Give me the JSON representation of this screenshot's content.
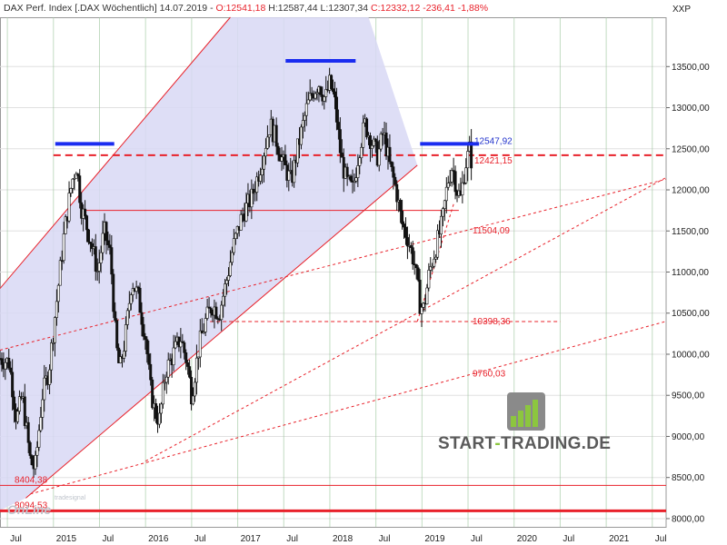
{
  "header": {
    "instrument": "DAX Perf. Index [.DAX  Wöchentlich]",
    "date": "14.07.2019",
    "open": "O:12541,18",
    "high": "H:12587,44",
    "low": "L:12307,34",
    "close": "C:12332,12",
    "change": "-236,41",
    "change_pct": "-1,88%",
    "colors": {
      "text": "#333333",
      "negative": "#e8212a"
    }
  },
  "brand": {
    "logo_left": "START",
    "logo_dash": "-",
    "logo_right": "TRADING.DE",
    "corner_logo": "OnLine",
    "corner_sub": "tradesignal"
  },
  "chart_data": {
    "type": "candlestick",
    "symbol_label": "XXP",
    "ylim": [
      7900,
      14100
    ],
    "y_ticks": [
      "8000,00",
      "8500,00",
      "9000,00",
      "9500,00",
      "10000,00",
      "10500,00",
      "11000,00",
      "11500,00",
      "12000,00",
      "12500,00",
      "13000,00",
      "13500,00"
    ],
    "y_tick_values": [
      8000,
      8500,
      9000,
      9500,
      10000,
      10500,
      11000,
      11500,
      12000,
      12500,
      13000,
      13500
    ],
    "x_ticks": [
      {
        "label": "Jul",
        "t": 2014.5
      },
      {
        "label": "2015",
        "t": 2015.0
      },
      {
        "label": "Jul",
        "t": 2015.5
      },
      {
        "label": "2016",
        "t": 2016.0
      },
      {
        "label": "Jul",
        "t": 2016.5
      },
      {
        "label": "2017",
        "t": 2017.0
      },
      {
        "label": "Jul",
        "t": 2017.5
      },
      {
        "label": "2018",
        "t": 2018.0
      },
      {
        "label": "Jul",
        "t": 2018.5
      },
      {
        "label": "2019",
        "t": 2019.0
      },
      {
        "label": "Jul",
        "t": 2019.5
      },
      {
        "label": "2020",
        "t": 2020.0
      },
      {
        "label": "Jul",
        "t": 2020.5
      },
      {
        "label": "2021",
        "t": 2021.0
      },
      {
        "label": "Jul",
        "t": 2021.5
      }
    ],
    "xlim": [
      2014.42,
      2021.65
    ],
    "price_path": [
      [
        2014.42,
        9950
      ],
      [
        2014.52,
        9900
      ],
      [
        2014.6,
        9200
      ],
      [
        2014.66,
        9500
      ],
      [
        2014.75,
        8700
      ],
      [
        2014.8,
        8600
      ],
      [
        2014.88,
        9500
      ],
      [
        2014.95,
        9800
      ],
      [
        2015.05,
        10800
      ],
      [
        2015.12,
        11500
      ],
      [
        2015.2,
        12100
      ],
      [
        2015.25,
        12300
      ],
      [
        2015.3,
        11800
      ],
      [
        2015.4,
        11400
      ],
      [
        2015.48,
        11000
      ],
      [
        2015.55,
        11500
      ],
      [
        2015.62,
        11200
      ],
      [
        2015.68,
        10100
      ],
      [
        2015.72,
        9800
      ],
      [
        2015.78,
        10200
      ],
      [
        2015.85,
        10900
      ],
      [
        2015.92,
        10700
      ],
      [
        2016.0,
        10200
      ],
      [
        2016.05,
        9600
      ],
      [
        2016.1,
        9300
      ],
      [
        2016.15,
        9200
      ],
      [
        2016.22,
        9800
      ],
      [
        2016.3,
        10000
      ],
      [
        2016.38,
        10200
      ],
      [
        2016.45,
        9900
      ],
      [
        2016.5,
        9500
      ],
      [
        2016.58,
        10100
      ],
      [
        2016.65,
        10400
      ],
      [
        2016.72,
        10600
      ],
      [
        2016.8,
        10500
      ],
      [
        2016.88,
        10900
      ],
      [
        2016.95,
        11300
      ],
      [
        2017.05,
        11700
      ],
      [
        2017.15,
        11900
      ],
      [
        2017.25,
        12300
      ],
      [
        2017.35,
        12800
      ],
      [
        2017.42,
        12600
      ],
      [
        2017.5,
        12300
      ],
      [
        2017.58,
        12100
      ],
      [
        2017.65,
        12500
      ],
      [
        2017.75,
        13000
      ],
      [
        2017.82,
        13200
      ],
      [
        2017.88,
        13300
      ],
      [
        2017.95,
        13100
      ],
      [
        2018.0,
        13300
      ],
      [
        2018.05,
        13100
      ],
      [
        2018.12,
        12400
      ],
      [
        2018.18,
        12100
      ],
      [
        2018.25,
        12000
      ],
      [
        2018.32,
        12500
      ],
      [
        2018.38,
        12800
      ],
      [
        2018.45,
        12600
      ],
      [
        2018.52,
        12400
      ],
      [
        2018.58,
        12700
      ],
      [
        2018.65,
        12300
      ],
      [
        2018.72,
        12000
      ],
      [
        2018.78,
        11600
      ],
      [
        2018.85,
        11400
      ],
      [
        2018.92,
        11100
      ],
      [
        2018.98,
        10600
      ],
      [
        2019.02,
        10550
      ],
      [
        2019.08,
        11000
      ],
      [
        2019.15,
        11300
      ],
      [
        2019.22,
        11600
      ],
      [
        2019.28,
        12100
      ],
      [
        2019.33,
        12300
      ],
      [
        2019.38,
        12000
      ],
      [
        2019.42,
        11900
      ],
      [
        2019.47,
        12300
      ],
      [
        2019.52,
        12500
      ],
      [
        2019.54,
        12330
      ]
    ],
    "annotations": [
      {
        "label": "12547,92",
        "y": 12547.92,
        "color": "#2233cc"
      },
      {
        "label": "12421,15",
        "y": 12421.15,
        "color": "#e8212a"
      },
      {
        "label": "11504,09",
        "y": 11504.09,
        "color": "#e8212a"
      },
      {
        "label": "10398,36",
        "y": 10398.36,
        "color": "#e8212a"
      },
      {
        "label": "9760,03",
        "y": 9760.03,
        "color": "#e8212a"
      },
      {
        "label": "8404,38",
        "y": 8404.38,
        "color": "#e8212a"
      },
      {
        "label": "8094,53",
        "y": 8094.53,
        "color": "#e8212a"
      }
    ],
    "horizontal_lines": [
      {
        "y": 12421.15,
        "style": "dashed-thick",
        "from": 2015.0,
        "to": 2021.65
      },
      {
        "y": 11750,
        "style": "solid-thin",
        "from": 2015.35,
        "to": 2019.4
      },
      {
        "y": 10398.36,
        "style": "dashed-thin",
        "from": 2016.7,
        "to": 2020.5
      },
      {
        "y": 8404.38,
        "style": "solid-thin",
        "from": 2014.42,
        "to": 2021.65
      },
      {
        "y": 8094.53,
        "style": "solid-thick",
        "from": 2014.42,
        "to": 2021.65
      }
    ],
    "resistance_marks": [
      {
        "y": 12560,
        "from": 2015.02,
        "to": 2015.66
      },
      {
        "y": 13570,
        "from": 2017.52,
        "to": 2018.28
      },
      {
        "y": 12560,
        "from": 2018.98,
        "to": 2019.62
      }
    ],
    "channel": {
      "upper": [
        [
          2014.42,
          10800
        ],
        [
          2016.92,
          14100
        ]
      ],
      "lower": [
        [
          2014.7,
          8250
        ],
        [
          2018.95,
          12300
        ]
      ],
      "fill_until": 2018.95,
      "fill_color": "#d8d8f5",
      "line_color": "#e8212a"
    },
    "trend_lines": [
      {
        "from": [
          2014.42,
          10050
        ],
        "to": [
          2021.65,
          12130
        ]
      },
      {
        "from": [
          2014.75,
          8300
        ],
        "to": [
          2021.65,
          10400
        ]
      },
      {
        "from": [
          2016.0,
          8700
        ],
        "to": [
          2021.65,
          12150
        ]
      },
      {
        "from": [
          2018.95,
          10400
        ],
        "to": [
          2019.35,
          11850
        ]
      }
    ],
    "grid": true,
    "colors": {
      "grid": "#9bc59b",
      "grid_minor": "#e0e0e0",
      "candle": "#111111",
      "line": "#e8212a",
      "resistance": "#1a2cf0"
    }
  }
}
